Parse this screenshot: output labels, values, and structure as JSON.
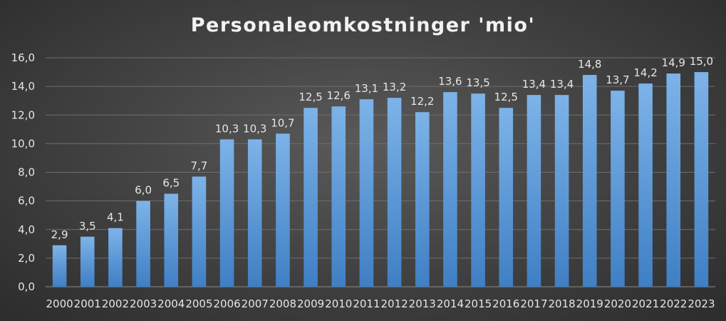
{
  "chart_data": {
    "type": "bar",
    "title": "Personaleomkostninger 'mio'",
    "categories": [
      "2000",
      "2001",
      "2002",
      "2003",
      "2004",
      "2005",
      "2006",
      "2007",
      "2008",
      "2009",
      "2010",
      "2011",
      "2012",
      "2013",
      "2014",
      "2015",
      "2016",
      "2017",
      "2018",
      "2019",
      "2020",
      "2021",
      "2022",
      "2023"
    ],
    "values": [
      2.9,
      3.5,
      4.1,
      6.0,
      6.5,
      7.7,
      10.3,
      10.3,
      10.7,
      12.5,
      12.6,
      13.1,
      13.2,
      12.2,
      13.6,
      13.5,
      12.5,
      13.4,
      13.4,
      14.8,
      13.7,
      14.2,
      14.9,
      15.0
    ],
    "data_labels": [
      "2,9",
      "3,5",
      "4,1",
      "6,0",
      "6,5",
      "7,7",
      "10,3",
      "10,3",
      "10,7",
      "12,5",
      "12,6",
      "13,1",
      "13,2",
      "12,2",
      "13,6",
      "13,5",
      "12,5",
      "13,4",
      "13,4",
      "14,8",
      "13,7",
      "14,2",
      "14,9",
      "15,0"
    ],
    "y_ticks": [
      "0,0",
      "2,0",
      "4,0",
      "6,0",
      "8,0",
      "10,0",
      "12,0",
      "14,0",
      "16,0"
    ],
    "ylim": [
      0,
      16
    ],
    "grid": true,
    "legend": "none",
    "bar_color": "#5b9bd5",
    "xlabel": "",
    "ylabel": ""
  }
}
